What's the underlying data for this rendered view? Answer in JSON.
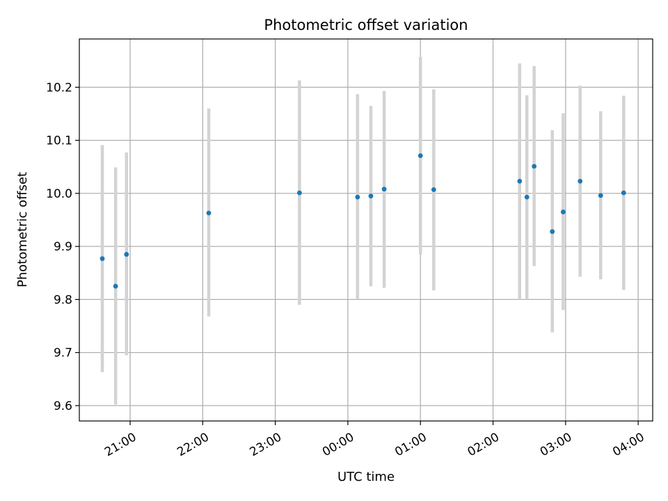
{
  "chart_data": {
    "type": "scatter",
    "title": "Photometric offset variation",
    "xlabel": "UTC time",
    "ylabel": "Photometric offset",
    "x_ticks": [
      "21:00",
      "22:00",
      "23:00",
      "00:00",
      "01:00",
      "02:00",
      "03:00",
      "04:00"
    ],
    "y_ticks": [
      "9.6",
      "9.7",
      "9.8",
      "9.9",
      "10.0",
      "10.1",
      "10.2"
    ],
    "xlim": [
      "20:18",
      "04:12"
    ],
    "ylim": [
      9.571,
      10.291
    ],
    "grid": true,
    "colors": {
      "marker": "#1f77b4",
      "errorbar": "#d3d3d3",
      "grid": "#b0b0b0"
    },
    "points": [
      {
        "time": "20:37",
        "y": 9.877,
        "lo": 9.663,
        "hi": 10.091
      },
      {
        "time": "20:48",
        "y": 9.825,
        "lo": 9.602,
        "hi": 10.049
      },
      {
        "time": "20:57",
        "y": 9.885,
        "lo": 9.695,
        "hi": 10.077
      },
      {
        "time": "22:05",
        "y": 9.963,
        "lo": 9.768,
        "hi": 10.16
      },
      {
        "time": "23:20",
        "y": 10.001,
        "lo": 9.79,
        "hi": 10.213
      },
      {
        "time": "00:08",
        "y": 9.993,
        "lo": 9.8,
        "hi": 10.187
      },
      {
        "time": "00:19",
        "y": 9.995,
        "lo": 9.825,
        "hi": 10.165
      },
      {
        "time": "00:30",
        "y": 10.008,
        "lo": 9.822,
        "hi": 10.193
      },
      {
        "time": "01:00",
        "y": 10.071,
        "lo": 9.885,
        "hi": 10.257
      },
      {
        "time": "01:11",
        "y": 10.007,
        "lo": 9.817,
        "hi": 10.196
      },
      {
        "time": "02:22",
        "y": 10.023,
        "lo": 9.8,
        "hi": 10.245
      },
      {
        "time": "02:28",
        "y": 9.993,
        "lo": 9.8,
        "hi": 10.185
      },
      {
        "time": "02:34",
        "y": 10.051,
        "lo": 9.863,
        "hi": 10.24
      },
      {
        "time": "02:49",
        "y": 9.928,
        "lo": 9.738,
        "hi": 10.119
      },
      {
        "time": "02:58",
        "y": 9.965,
        "lo": 9.78,
        "hi": 10.151
      },
      {
        "time": "03:12",
        "y": 10.023,
        "lo": 9.843,
        "hi": 10.203
      },
      {
        "time": "03:29",
        "y": 9.996,
        "lo": 9.838,
        "hi": 10.155
      },
      {
        "time": "03:48",
        "y": 10.001,
        "lo": 9.818,
        "hi": 10.184
      }
    ]
  }
}
